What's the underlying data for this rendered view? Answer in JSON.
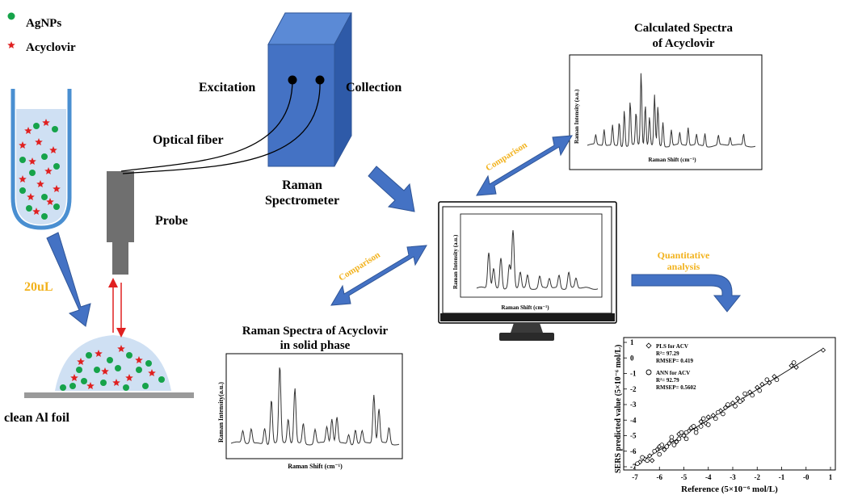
{
  "legend": {
    "agnps": "AgNPs",
    "acyclovir": "Acyclovir"
  },
  "labels": {
    "excitation": "Excitation",
    "collection": "Collection",
    "optical_fiber": "Optical fiber",
    "probe": "Probe",
    "spectrometer_line1": "Raman",
    "spectrometer_line2": "Spectrometer",
    "volume": "20uL",
    "substrate": "clean Al foil",
    "comparison_top": "Comparison",
    "comparison_bottom": "Comparison",
    "quant_line1": "Quantitative",
    "quant_line2": "analysis"
  },
  "calc_spectrum": {
    "title_line1": "Calculated  Spectra",
    "title_line2": "of Acyclovir",
    "ylabel": "Raman Intensity (a.u.)",
    "xlabel": "Raman Shift (cm⁻¹)",
    "peaks": [
      [
        0.05,
        0.12
      ],
      [
        0.1,
        0.2
      ],
      [
        0.15,
        0.25
      ],
      [
        0.19,
        0.3
      ],
      [
        0.22,
        0.45
      ],
      [
        0.255,
        0.55
      ],
      [
        0.29,
        0.4
      ],
      [
        0.32,
        0.9
      ],
      [
        0.345,
        0.5
      ],
      [
        0.37,
        0.35
      ],
      [
        0.4,
        0.62
      ],
      [
        0.42,
        0.48
      ],
      [
        0.45,
        0.3
      ],
      [
        0.5,
        0.2
      ],
      [
        0.55,
        0.15
      ],
      [
        0.6,
        0.22
      ],
      [
        0.65,
        0.13
      ],
      [
        0.7,
        0.16
      ],
      [
        0.78,
        0.12
      ],
      [
        0.85,
        0.1
      ],
      [
        0.93,
        0.14
      ]
    ]
  },
  "monitor_spectrum": {
    "ylabel": "Raman Intensity (a.u.)",
    "xlabel": "Raman Shift (cm⁻¹)",
    "peaks": [
      [
        0.1,
        0.55
      ],
      [
        0.14,
        0.3
      ],
      [
        0.2,
        0.48
      ],
      [
        0.27,
        0.35
      ],
      [
        0.3,
        0.88
      ],
      [
        0.36,
        0.25
      ],
      [
        0.42,
        0.2
      ],
      [
        0.52,
        0.18
      ],
      [
        0.6,
        0.15
      ],
      [
        0.68,
        0.2
      ],
      [
        0.76,
        0.25
      ],
      [
        0.82,
        0.15
      ]
    ]
  },
  "solid_spectrum": {
    "title_line1": "Raman  Spectra of Acyclovir",
    "title_line2": "in solid phase",
    "ylabel": "Raman Intensity(a.u.)",
    "xlabel": "Raman Shift (cm⁻¹)",
    "peaks": [
      [
        0.07,
        0.15
      ],
      [
        0.12,
        0.18
      ],
      [
        0.2,
        0.2
      ],
      [
        0.24,
        0.55
      ],
      [
        0.29,
        0.95
      ],
      [
        0.34,
        0.3
      ],
      [
        0.38,
        0.68
      ],
      [
        0.43,
        0.25
      ],
      [
        0.5,
        0.18
      ],
      [
        0.57,
        0.2
      ],
      [
        0.6,
        0.3
      ],
      [
        0.63,
        0.32
      ],
      [
        0.7,
        0.12
      ],
      [
        0.74,
        0.18
      ],
      [
        0.78,
        0.15
      ],
      [
        0.85,
        0.6
      ],
      [
        0.88,
        0.42
      ],
      [
        0.94,
        0.2
      ]
    ]
  },
  "chart_data": {
    "type": "scatter",
    "xlabel": "Reference (5×10⁻⁶ mol/L)",
    "ylabel": "SERS predicted value (5×10⁻⁶ mol/L)",
    "xlim": [
      -7,
      1
    ],
    "ylim": [
      -7,
      1
    ],
    "x_ticks": [
      "-7",
      "-6",
      "-5",
      "-4",
      "-3",
      "-2",
      "-1",
      "-0",
      "1"
    ],
    "y_ticks": [
      "1",
      "0",
      "-1",
      "-2",
      "-3",
      "-4",
      "-5",
      "-6",
      "-7"
    ],
    "legend": [
      {
        "marker": "diamond",
        "name": "PLS for ACV",
        "r2": "R²= 97.29",
        "rmsep": "RMSEP= 0.419"
      },
      {
        "marker": "circle",
        "name": "ANN for ACV",
        "r2": "R²= 92.79",
        "rmsep": "RMSEP= 0.5602"
      }
    ],
    "fit_line": [
      [
        -7,
        -6.9
      ],
      [
        0.7,
        0.6
      ]
    ],
    "series": [
      {
        "name": "PLS for ACV",
        "marker": "diamond",
        "points": [
          [
            -6.8,
            -6.7
          ],
          [
            -6.6,
            -6.5
          ],
          [
            -6.4,
            -6.3
          ],
          [
            -6.3,
            -6.6
          ],
          [
            -6.1,
            -5.9
          ],
          [
            -6.0,
            -5.7
          ],
          [
            -5.8,
            -5.9
          ],
          [
            -5.6,
            -5.5
          ],
          [
            -5.5,
            -5.3
          ],
          [
            -5.3,
            -5.4
          ],
          [
            -5.2,
            -4.9
          ],
          [
            -5.0,
            -5.0
          ],
          [
            -4.8,
            -4.7
          ],
          [
            -4.7,
            -4.5
          ],
          [
            -4.5,
            -4.6
          ],
          [
            -4.3,
            -4.1
          ],
          [
            -4.1,
            -4.2
          ],
          [
            -4.0,
            -3.8
          ],
          [
            -3.8,
            -3.7
          ],
          [
            -3.5,
            -3.4
          ],
          [
            -3.3,
            -3.2
          ],
          [
            -3.0,
            -2.9
          ],
          [
            -2.8,
            -2.6
          ],
          [
            -2.6,
            -2.7
          ],
          [
            -2.3,
            -2.2
          ],
          [
            -2.0,
            -1.9
          ],
          [
            -1.8,
            -1.7
          ],
          [
            -1.5,
            -1.6
          ],
          [
            -1.3,
            -1.2
          ],
          [
            -0.6,
            -0.5
          ],
          [
            -0.4,
            -0.6
          ],
          [
            0.7,
            0.5
          ]
        ]
      },
      {
        "name": "ANN for ACV",
        "marker": "circle",
        "points": [
          [
            -6.9,
            -6.8
          ],
          [
            -6.7,
            -6.4
          ],
          [
            -6.5,
            -6.6
          ],
          [
            -6.2,
            -6.0
          ],
          [
            -6.0,
            -6.2
          ],
          [
            -5.9,
            -5.6
          ],
          [
            -5.7,
            -5.7
          ],
          [
            -5.5,
            -5.1
          ],
          [
            -5.4,
            -5.6
          ],
          [
            -5.2,
            -5.2
          ],
          [
            -5.1,
            -4.8
          ],
          [
            -4.9,
            -4.8
          ],
          [
            -4.9,
            -5.2
          ],
          [
            -4.6,
            -4.4
          ],
          [
            -4.5,
            -4.8
          ],
          [
            -4.3,
            -4.4
          ],
          [
            -4.2,
            -3.9
          ],
          [
            -4.0,
            -4.3
          ],
          [
            -3.7,
            -3.9
          ],
          [
            -3.6,
            -3.5
          ],
          [
            -3.4,
            -3.6
          ],
          [
            -3.2,
            -3.0
          ],
          [
            -2.9,
            -3.1
          ],
          [
            -2.7,
            -2.8
          ],
          [
            -2.5,
            -2.3
          ],
          [
            -2.2,
            -2.4
          ],
          [
            -1.9,
            -2.1
          ],
          [
            -1.6,
            -1.4
          ],
          [
            -1.2,
            -1.4
          ],
          [
            -0.5,
            -0.3
          ]
        ]
      }
    ]
  }
}
